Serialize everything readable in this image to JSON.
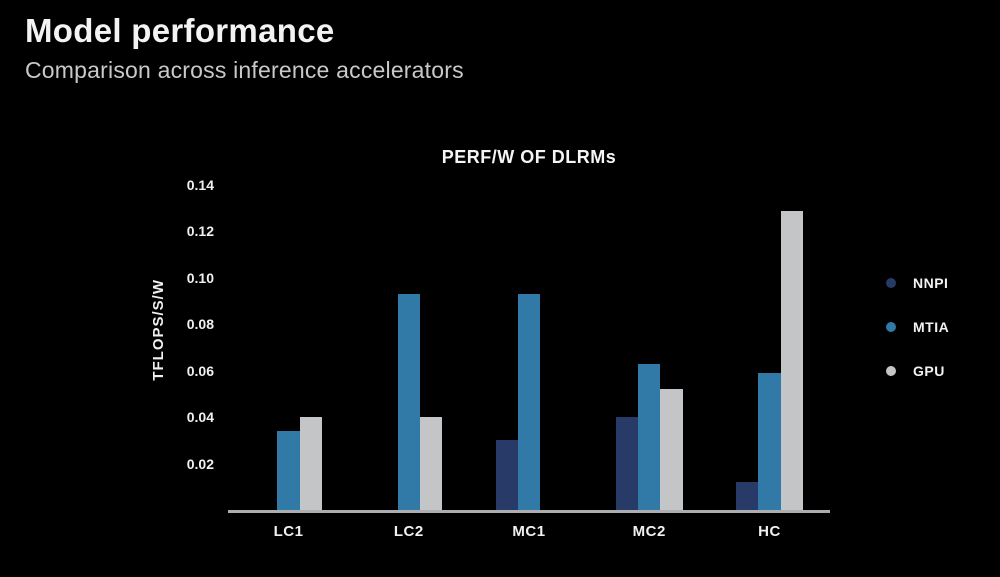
{
  "page": {
    "title": "Model performance",
    "subtitle": "Comparison across inference accelerators"
  },
  "colors": {
    "background": "#000000",
    "title_text": "#f3f3f3",
    "subtitle_text": "#c9c9c9",
    "axis_line": "#abaeb0",
    "tick_text": "#f0f0f0",
    "nnpi": "#283a67",
    "mtia": "#3179a7",
    "gpu": "#c3c5c7"
  },
  "chart_data": {
    "type": "bar",
    "title": "PERF/W OF DLRMs",
    "xlabel": "",
    "ylabel": "TFLOPS/S/W",
    "categories": [
      "LC1",
      "LC2",
      "MC1",
      "MC2",
      "HC"
    ],
    "series": [
      {
        "name": "NNPI",
        "color": "#283a67",
        "values": [
          null,
          null,
          0.03,
          0.04,
          0.012
        ]
      },
      {
        "name": "MTIA",
        "color": "#3179a7",
        "values": [
          0.034,
          0.093,
          0.093,
          0.063,
          0.059
        ]
      },
      {
        "name": "GPU",
        "color": "#c3c5c7",
        "values": [
          0.04,
          0.04,
          null,
          0.052,
          0.129
        ]
      }
    ],
    "yticks": [
      0.02,
      0.04,
      0.06,
      0.08,
      0.1,
      0.12,
      0.14
    ],
    "ylim": [
      0,
      0.14
    ],
    "grid": false,
    "legend_position": "right"
  }
}
